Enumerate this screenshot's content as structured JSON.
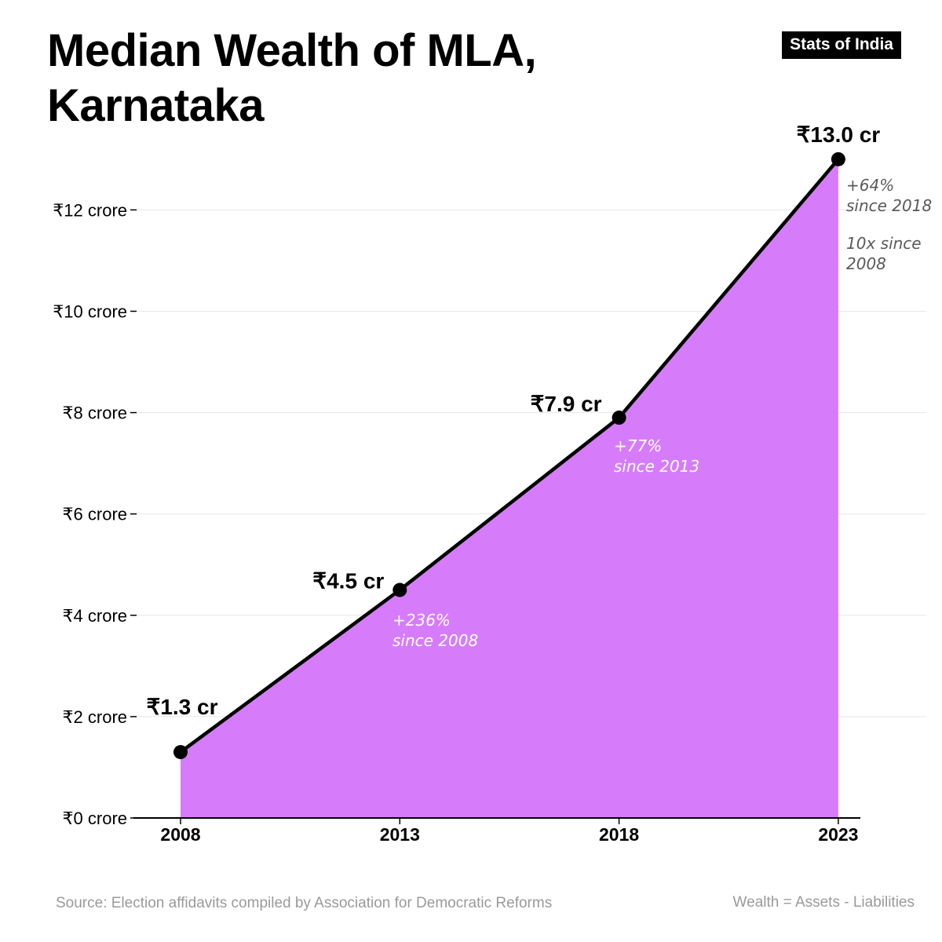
{
  "header": {
    "title": "Median Wealth of MLA, Karnataka",
    "badge": "Stats of India"
  },
  "footer": {
    "source": "Source: Election affidavits compiled by Association for Democratic Reforms",
    "note": "Wealth = Assets - Liabilities"
  },
  "colors": {
    "area_fill": "#d67cfb",
    "line": "#000000",
    "grid": "#e6e6e6",
    "annotation_inside": "#ffffff",
    "annotation_outside": "#5a5a5a"
  },
  "chart_data": {
    "type": "area",
    "title": "Median Wealth of MLA, Karnataka",
    "xlabel": "",
    "ylabel": "",
    "x": [
      "2008",
      "2013",
      "2018",
      "2023"
    ],
    "values": [
      1.3,
      4.5,
      7.9,
      13.0
    ],
    "ylim": [
      0,
      13.5
    ],
    "grid": true,
    "y_ticks": [
      {
        "value": 0,
        "label": "₹0 crore"
      },
      {
        "value": 2,
        "label": "₹2 crore"
      },
      {
        "value": 4,
        "label": "₹4 crore"
      },
      {
        "value": 6,
        "label": "₹6 crore"
      },
      {
        "value": 8,
        "label": "₹8 crore"
      },
      {
        "value": 10,
        "label": "₹10 crore"
      },
      {
        "value": 12,
        "label": "₹12 crore"
      }
    ],
    "data_labels": [
      "₹1.3 cr",
      "₹4.5 cr",
      "₹7.9 cr",
      "₹13.0 cr"
    ],
    "annotations": [
      {
        "index": 1,
        "lines": [
          "+236%",
          "since 2008"
        ]
      },
      {
        "index": 2,
        "lines": [
          "+77%",
          "since 2013"
        ]
      },
      {
        "index": 3,
        "lines": [
          "+64%",
          "since 2018"
        ]
      },
      {
        "index": 3,
        "lines": [
          "10x since",
          "2008"
        ]
      }
    ]
  }
}
